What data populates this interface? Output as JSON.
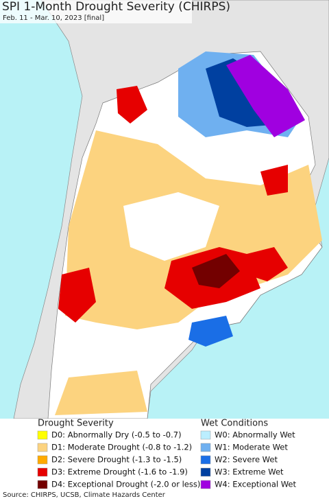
{
  "header": {
    "title": "SPI 1-Month Drought Severity (CHIRPS)",
    "subtitle": "Feb. 11 - Mar. 10, 2023 [final]"
  },
  "legend": [
    {
      "heading": "Drought Severity",
      "items": [
        {
          "label": "D0: Abnormally Dry (-0.5 to -0.7)",
          "color": "#ffff00"
        },
        {
          "label": "D1: Moderate Drought (-0.8 to -1.2)",
          "color": "#fcd37f"
        },
        {
          "label": "D2: Severe Drought (-1.3 to -1.5)",
          "color": "#ffaa00"
        },
        {
          "label": "D3: Extreme Drought (-1.6 to -1.9)",
          "color": "#e60000"
        },
        {
          "label": "D4: Exceptional Drought (-2.0 or less)",
          "color": "#730000"
        }
      ]
    },
    {
      "heading": "Wet Conditions",
      "items": [
        {
          "label": "W0: Abnormally Wet",
          "color": "#bbeeff"
        },
        {
          "label": "W1: Moderate Wet",
          "color": "#6fb0f0"
        },
        {
          "label": "W2: Severe Wet",
          "color": "#1a6ee6"
        },
        {
          "label": "W3: Extreme Wet",
          "color": "#0040a0"
        },
        {
          "label": "W4: Exceptional Wet",
          "color": "#a000e0"
        }
      ]
    }
  ],
  "footer": {
    "source": "Source: CHIRPS, UCSB, Climate Hazards Center"
  }
}
